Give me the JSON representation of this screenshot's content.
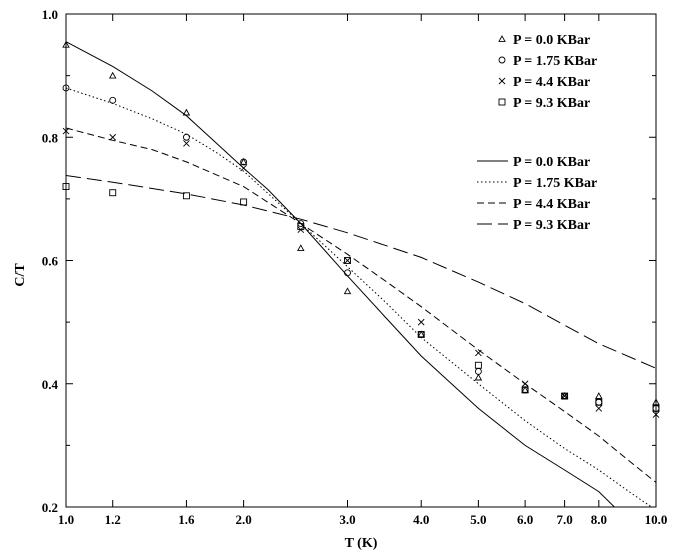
{
  "chart_data": {
    "type": "scatter",
    "xlabel": "T (K)",
    "ylabel": "C/T",
    "x_scale": "log",
    "xlim": [
      1.0,
      10.0
    ],
    "ylim": [
      0.2,
      1.0
    ],
    "x_ticks": [
      1.0,
      1.2,
      1.6,
      2.0,
      3.0,
      4.0,
      5.0,
      6.0,
      7.0,
      8.0,
      10.0
    ],
    "x_tick_labels": [
      "1.0",
      "1.2",
      "1.6",
      "2.0",
      "3.0",
      "4.0",
      "5.0",
      "6.0",
      "7.0",
      "8.0",
      "10.0"
    ],
    "y_ticks": [
      0.2,
      0.4,
      0.6,
      0.8,
      1.0
    ],
    "y_tick_labels": [
      "0.2",
      "0.4",
      "0.6",
      "0.8",
      "1.0"
    ],
    "grid": false,
    "legend_placement": "top-right",
    "marker_series": [
      {
        "name": "P = 0.0 KBar",
        "marker": "triangle",
        "points": [
          [
            1.0,
            0.95
          ],
          [
            1.2,
            0.9
          ],
          [
            1.6,
            0.84
          ],
          [
            2.0,
            0.76
          ],
          [
            2.5,
            0.62
          ],
          [
            3.0,
            0.55
          ],
          [
            4.0,
            0.48
          ],
          [
            5.0,
            0.41
          ],
          [
            6.0,
            0.39
          ],
          [
            7.0,
            0.38
          ],
          [
            8.0,
            0.38
          ],
          [
            10.0,
            0.37
          ]
        ]
      },
      {
        "name": "P = 1.75 KBar",
        "marker": "circle",
        "points": [
          [
            1.0,
            0.88
          ],
          [
            1.2,
            0.86
          ],
          [
            1.6,
            0.8
          ],
          [
            2.0,
            0.76
          ],
          [
            2.5,
            0.66
          ],
          [
            3.0,
            0.58
          ],
          [
            4.0,
            0.48
          ],
          [
            5.0,
            0.42
          ],
          [
            6.0,
            0.39
          ],
          [
            7.0,
            0.38
          ],
          [
            8.0,
            0.37
          ],
          [
            10.0,
            0.36
          ]
        ]
      },
      {
        "name": "P = 4.4 KBar",
        "marker": "cross",
        "points": [
          [
            1.0,
            0.81
          ],
          [
            1.2,
            0.8
          ],
          [
            1.6,
            0.79
          ],
          [
            2.0,
            0.75
          ],
          [
            2.5,
            0.65
          ],
          [
            3.0,
            0.6
          ],
          [
            4.0,
            0.5
          ],
          [
            5.0,
            0.45
          ],
          [
            6.0,
            0.4
          ],
          [
            7.0,
            0.38
          ],
          [
            8.0,
            0.36
          ],
          [
            10.0,
            0.35
          ]
        ]
      },
      {
        "name": "P = 9.3 KBar",
        "marker": "square",
        "points": [
          [
            1.0,
            0.72
          ],
          [
            1.2,
            0.71
          ],
          [
            1.6,
            0.705
          ],
          [
            2.0,
            0.695
          ],
          [
            2.5,
            0.655
          ],
          [
            3.0,
            0.6
          ],
          [
            4.0,
            0.48
          ],
          [
            5.0,
            0.43
          ],
          [
            6.0,
            0.39
          ],
          [
            7.0,
            0.38
          ],
          [
            8.0,
            0.37
          ],
          [
            10.0,
            0.36
          ]
        ]
      }
    ],
    "line_series": [
      {
        "name": "P = 0.0 KBar",
        "dash": "solid",
        "points": [
          [
            1.0,
            0.955
          ],
          [
            1.2,
            0.915
          ],
          [
            1.4,
            0.875
          ],
          [
            1.6,
            0.835
          ],
          [
            1.8,
            0.79
          ],
          [
            2.0,
            0.75
          ],
          [
            2.2,
            0.715
          ],
          [
            2.5,
            0.66
          ],
          [
            3.0,
            0.575
          ],
          [
            3.5,
            0.505
          ],
          [
            4.0,
            0.445
          ],
          [
            5.0,
            0.36
          ],
          [
            6.0,
            0.3
          ],
          [
            7.0,
            0.26
          ],
          [
            8.0,
            0.225
          ],
          [
            8.5,
            0.2
          ]
        ]
      },
      {
        "name": "P = 1.75 KBar",
        "dash": "dotted",
        "points": [
          [
            1.0,
            0.88
          ],
          [
            1.2,
            0.855
          ],
          [
            1.4,
            0.83
          ],
          [
            1.6,
            0.805
          ],
          [
            1.8,
            0.775
          ],
          [
            2.0,
            0.745
          ],
          [
            2.5,
            0.66
          ],
          [
            3.0,
            0.59
          ],
          [
            3.5,
            0.53
          ],
          [
            4.0,
            0.475
          ],
          [
            5.0,
            0.4
          ],
          [
            6.0,
            0.34
          ],
          [
            7.0,
            0.295
          ],
          [
            8.0,
            0.26
          ],
          [
            9.0,
            0.225
          ],
          [
            10.0,
            0.195
          ]
        ]
      },
      {
        "name": "P = 4.4 KBar",
        "dash": "dashed",
        "points": [
          [
            1.0,
            0.815
          ],
          [
            1.2,
            0.795
          ],
          [
            1.4,
            0.78
          ],
          [
            1.6,
            0.76
          ],
          [
            2.0,
            0.72
          ],
          [
            2.5,
            0.66
          ],
          [
            3.0,
            0.61
          ],
          [
            3.5,
            0.565
          ],
          [
            4.0,
            0.525
          ],
          [
            5.0,
            0.455
          ],
          [
            6.0,
            0.4
          ],
          [
            7.0,
            0.355
          ],
          [
            8.0,
            0.315
          ],
          [
            9.0,
            0.275
          ],
          [
            10.0,
            0.24
          ]
        ]
      },
      {
        "name": "P = 9.3 KBar",
        "dash": "long-dashed",
        "points": [
          [
            1.0,
            0.738
          ],
          [
            1.2,
            0.727
          ],
          [
            1.6,
            0.708
          ],
          [
            2.0,
            0.69
          ],
          [
            2.5,
            0.667
          ],
          [
            3.0,
            0.645
          ],
          [
            4.0,
            0.605
          ],
          [
            5.0,
            0.565
          ],
          [
            6.0,
            0.53
          ],
          [
            7.0,
            0.495
          ],
          [
            8.0,
            0.465
          ],
          [
            10.0,
            0.425
          ]
        ]
      }
    ]
  }
}
